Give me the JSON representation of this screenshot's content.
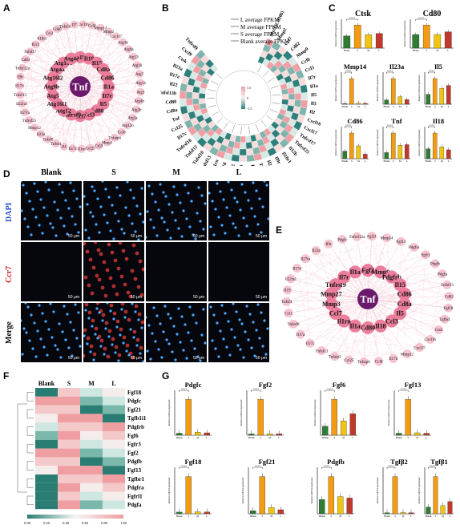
{
  "panels": {
    "a": "A",
    "b": "B",
    "c": "C",
    "d": "D",
    "e": "E",
    "f": "F",
    "g": "G"
  },
  "network_a": {
    "hub": "Tnf",
    "inner_ring": [
      "Map1lc3b",
      "Il18",
      "Il15",
      "Cd8a",
      "Cd86",
      "Il1a",
      "Il7r",
      "Il5",
      "Cd80",
      "Ccl3",
      "Ccl7",
      "Tnfrsf9",
      "Atg12",
      "Atg16l1",
      "Atg5",
      "Atg9b",
      "Atg16l2",
      "Atg4a",
      "Atg101",
      "Atg4c"
    ],
    "outer_ring": [
      "Cxcl16",
      "Ccl4",
      "Mmp14",
      "Mmp2",
      "Cxcl17",
      "Atg4d",
      "Atg9a",
      "Atg13",
      "Atg10",
      "Atg7",
      "Atg14",
      "Atg3",
      "Atg4b",
      "Atg2b",
      "Atg2a",
      "Atg12b",
      "Ccl6",
      "Tnfaip6",
      "Mmp3",
      "Cd2l",
      "Ccl25",
      "Il1rn",
      "Il17c",
      "Il4",
      "Tnfsf4",
      "Tnfsf8",
      "Il23a",
      "Mmp12",
      "Tnfrsf25",
      "Il27ra",
      "Il22ra1",
      "Tnfsf13",
      "Il17d",
      "Il9r",
      "Tnfsf12a",
      "Cd83",
      "Tnfsf17",
      "Il1r2",
      "Il18r1",
      "Ccl2",
      "Cd40",
      "Tnfsf10",
      "Il7"
    ]
  },
  "heatmap_b": {
    "legend": [
      "L average FPKM",
      "M average FPKM",
      "S average FPKM",
      "Blank average FPKM"
    ],
    "genes": [
      "Mrc1(Cd206)",
      "Mmp2",
      "Ccl7",
      "Cd82",
      "Mmp9",
      "Ccl6",
      "Ccl3",
      "Il7r",
      "Il1a",
      "Il5",
      "Il3",
      "Il2",
      "Cxcl16",
      "Cxcl17",
      "Tnfrsf17",
      "Tnfrsf25",
      "Il12b",
      "Il18r1",
      "Il9r",
      "Il24",
      "Tnfrsf4",
      "Il10ra",
      "Mmp28",
      "Mmp12",
      "Il17d",
      "Il1rn",
      "Tnfsf13",
      "Tnfsf10",
      "Tnfsf12",
      "Tnfrsf18",
      "Il17c",
      "Ccl25",
      "Tnf",
      "Cd8a",
      "Cd80",
      "Tnfsf13b",
      "Il22",
      "Il17a",
      "Il23a",
      "Ctsk",
      "Cxcl9",
      "Tnfrsf9"
    ],
    "scale_ticks": [
      "1.5",
      "0",
      "-1.5"
    ]
  },
  "bars_c": {
    "y_label": "Relative mRNA expression",
    "groups": [
      "Blank",
      "S",
      "M",
      "L"
    ],
    "colors": [
      "#2e7d32",
      "#f39c12",
      "#f1c40f",
      "#c0392b"
    ],
    "genes": [
      {
        "name": "Ctsk",
        "values": [
          1.0,
          1.9,
          1.1,
          1.2
        ]
      },
      {
        "name": "Cd80",
        "values": [
          1.0,
          1.7,
          1.0,
          1.2
        ]
      },
      {
        "name": "Mmp14",
        "values": [
          1.0,
          38,
          1.5,
          1.2
        ]
      },
      {
        "name": "Il23a",
        "values": [
          1.0,
          6.2,
          1.8,
          1.1
        ]
      },
      {
        "name": "Il5",
        "values": [
          1.0,
          2.6,
          1.6,
          1.9
        ]
      },
      {
        "name": "Cd86",
        "values": [
          1.0,
          3.4,
          1.7,
          0.6
        ]
      },
      {
        "name": "Tnf",
        "values": [
          1.0,
          4.2,
          2.2,
          2.3
        ]
      },
      {
        "name": "Il18",
        "values": [
          1.0,
          2.6,
          1.2,
          0.9
        ]
      }
    ]
  },
  "micrographs_d": {
    "columns": [
      "Blank",
      "S",
      "M",
      "L"
    ],
    "rows": [
      "DAPI",
      "Ccr7",
      "Merge"
    ],
    "scale_bar": "50 μm"
  },
  "network_e": {
    "hub": "Tnf",
    "inner_ring": [
      "Fgf2",
      "Mmp9",
      "Pdgfrb",
      "Il15",
      "Cd86",
      "Cd8a",
      "Il5",
      "Ccl3",
      "Il18",
      "Cd80",
      "Il1a",
      "Il1rn",
      "Ccl7",
      "Mmp3",
      "Mmp27",
      "Tnfrsf9",
      "Il7r",
      "Il1a"
    ],
    "outer_ring": [
      "Fgf21",
      "Mmp14",
      "Fgf13",
      "Pdgfra",
      "Fgfr3",
      "Pdgfb",
      "Pdgfa",
      "Tnfsf13",
      "Cd82",
      "Fgf18",
      "Tgfbr1",
      "Ctsk",
      "Cxcl16",
      "Cxcl17",
      "Mmp12",
      "Il17b",
      "Ccl6",
      "Tnfaip6",
      "Ccl25",
      "Tnfaip3",
      "Tnfsf13",
      "Il17c",
      "Il17a",
      "Tnfrsf8",
      "Ccl1",
      "Tnfsf4",
      "Il19",
      "Il22ra1",
      "Il17d",
      "Il27ra",
      "Il23a",
      "Il9r",
      "Pdgfc",
      "Tnfrsf12a"
    ]
  },
  "heatmap_f": {
    "columns": [
      "Blank",
      "S",
      "M",
      "L"
    ],
    "genes": [
      "Fgf18",
      "Pdgfc",
      "Fgf21",
      "Tgfb1i1",
      "Pdgfrb",
      "Fgf6",
      "Fgfr3",
      "Fgf2",
      "Pdgfb",
      "Fgf13",
      "Tgfbr1",
      "Pdgfra",
      "Fgfrl1",
      "Pdgfa"
    ],
    "scale_ticks": [
      "0.00",
      "0.20",
      "0.40",
      "0.60",
      "0.80",
      "1.00"
    ]
  },
  "bars_g": {
    "y_label": "Relative mRNA expression",
    "groups": [
      "Blank",
      "S",
      "M",
      "L"
    ],
    "colors": [
      "#2e7d32",
      "#f39c12",
      "#f1c40f",
      "#c0392b"
    ],
    "genes": [
      {
        "name": "Pdgfc",
        "values": [
          1.0,
          18,
          1.5,
          1.2
        ]
      },
      {
        "name": "Fgf2",
        "values": [
          1.0,
          28,
          1.2,
          1.1
        ]
      },
      {
        "name": "Fgf6",
        "values": [
          1.0,
          4.0,
          1.6,
          2.4
        ]
      },
      {
        "name": "Fgf13",
        "values": [
          1.0,
          18,
          1.2,
          1.0
        ]
      },
      {
        "name": "Fgf18",
        "values": [
          1.0,
          22,
          1.2,
          1.1
        ]
      },
      {
        "name": "Fgf21",
        "values": [
          1.0,
          12,
          2.0,
          1.3
        ]
      },
      {
        "name": "Pdgfb",
        "values": [
          1.0,
          2.6,
          1.2,
          1.1
        ]
      },
      {
        "name": "Tgfβ2",
        "values": [
          1.0,
          35,
          1.2,
          1.0
        ]
      },
      {
        "name": "Tgfβ1",
        "values": [
          1.0,
          5.5,
          1.2,
          1.8
        ]
      }
    ]
  }
}
